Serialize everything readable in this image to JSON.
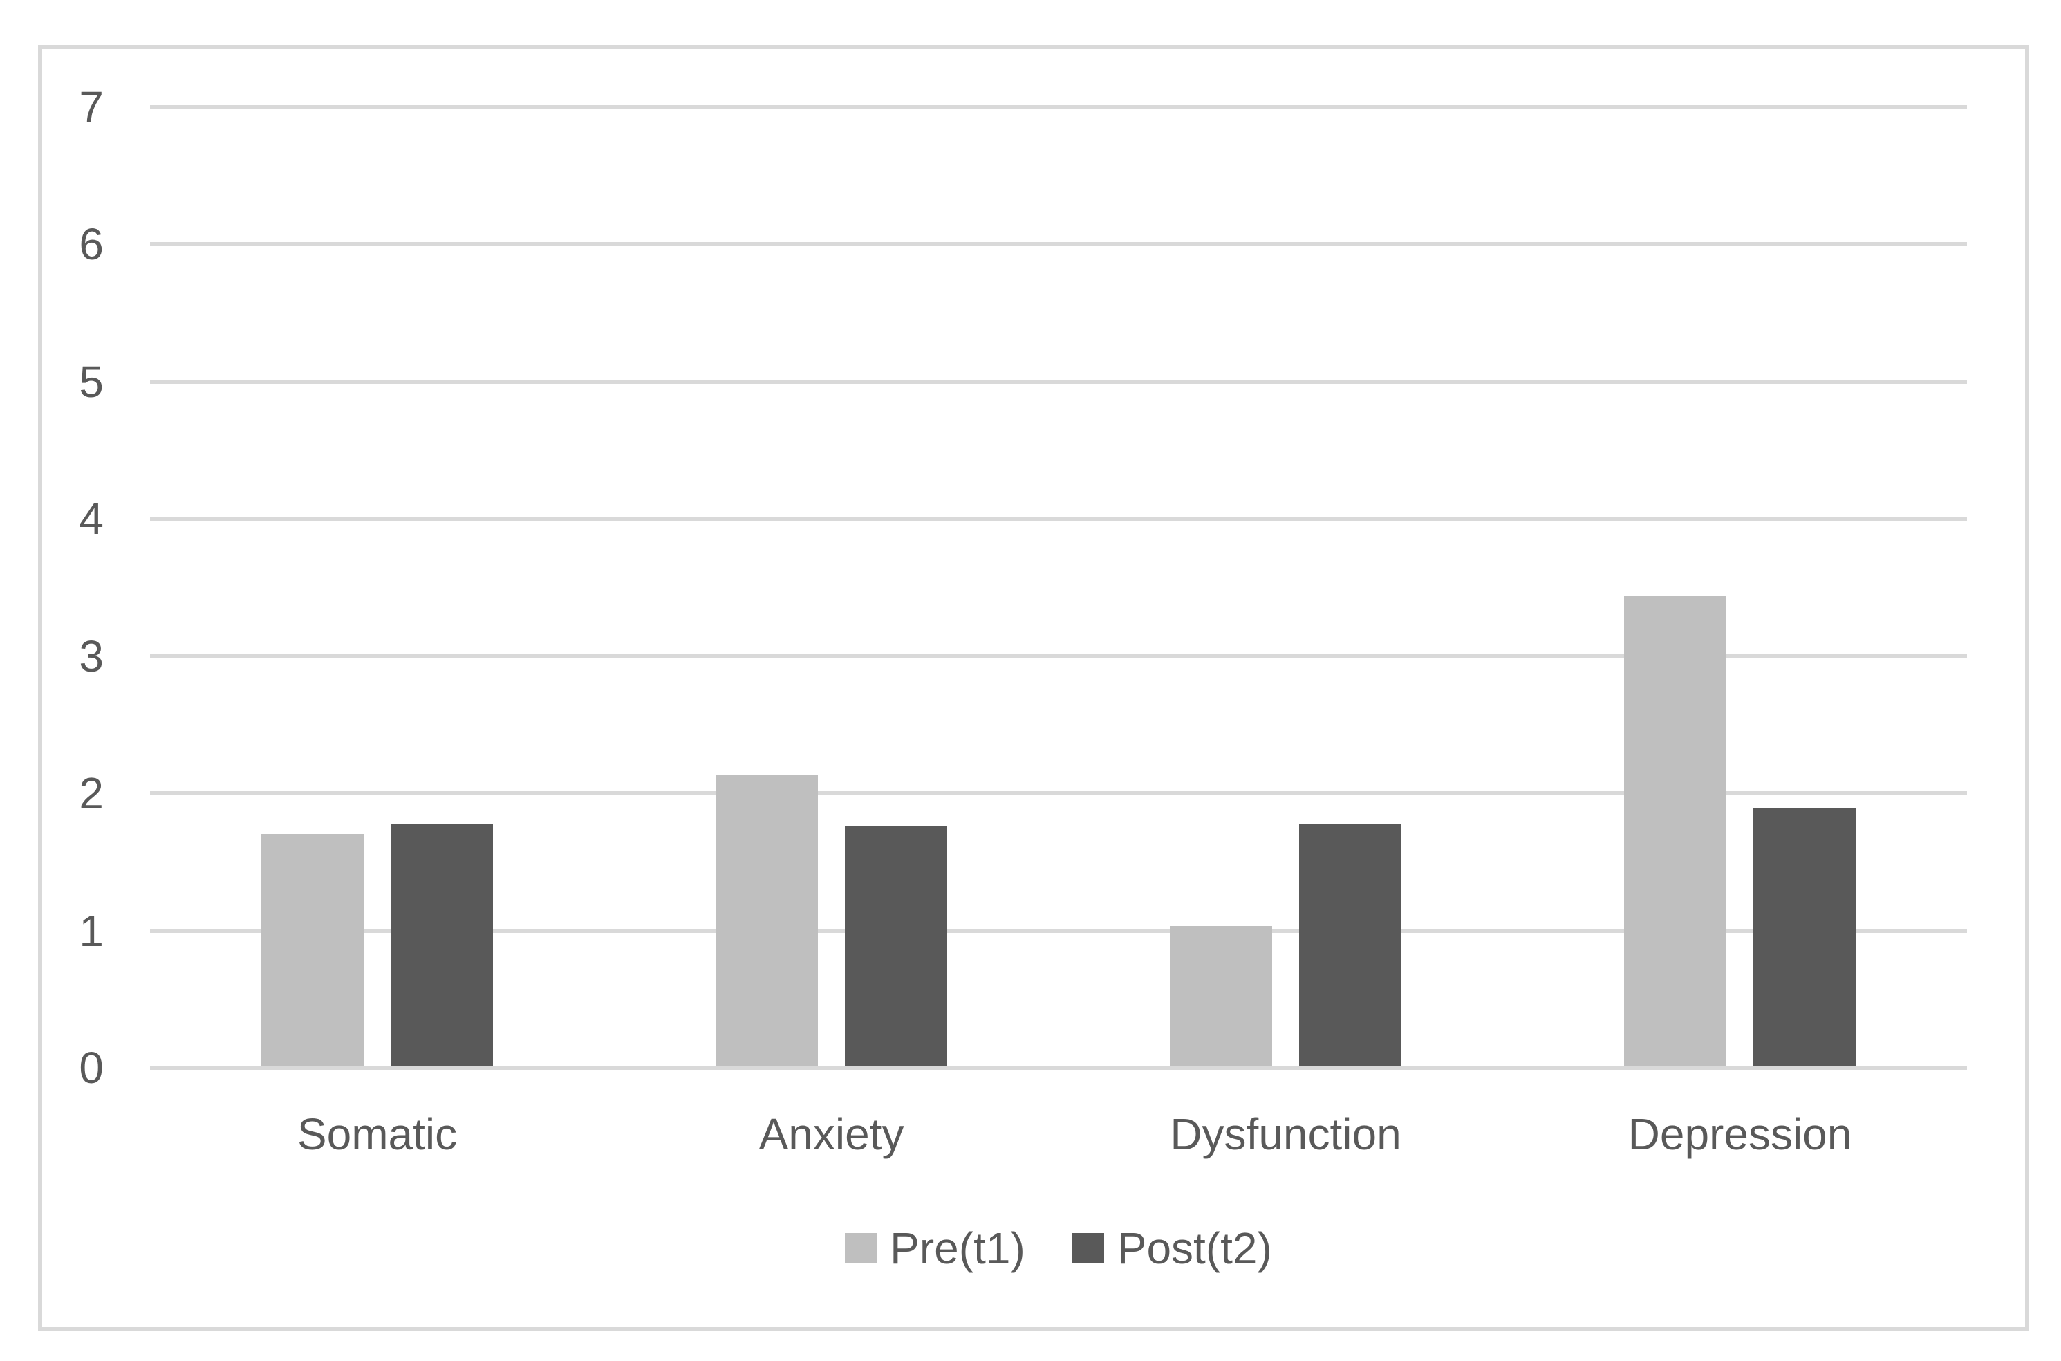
{
  "chart_data": {
    "type": "bar",
    "categories": [
      "Somatic",
      "Anxiety",
      "Dysfunction",
      "Depression"
    ],
    "series": [
      {
        "name": "Pre(t1)",
        "color": "#bfbfbf",
        "values": [
          1.69,
          2.12,
          1.02,
          3.42
        ]
      },
      {
        "name": "Post(t2)",
        "color": "#595959",
        "values": [
          1.76,
          1.75,
          1.76,
          1.88
        ]
      }
    ],
    "ylim": [
      0,
      7
    ],
    "yticks": [
      0,
      1,
      2,
      3,
      4,
      5,
      6,
      7
    ],
    "grid": "horizontal",
    "legend_position": "bottom"
  },
  "colors": {
    "background": "#ffffff",
    "border": "#d9d9d9",
    "gridline": "#d9d9d9",
    "text": "#595959"
  }
}
